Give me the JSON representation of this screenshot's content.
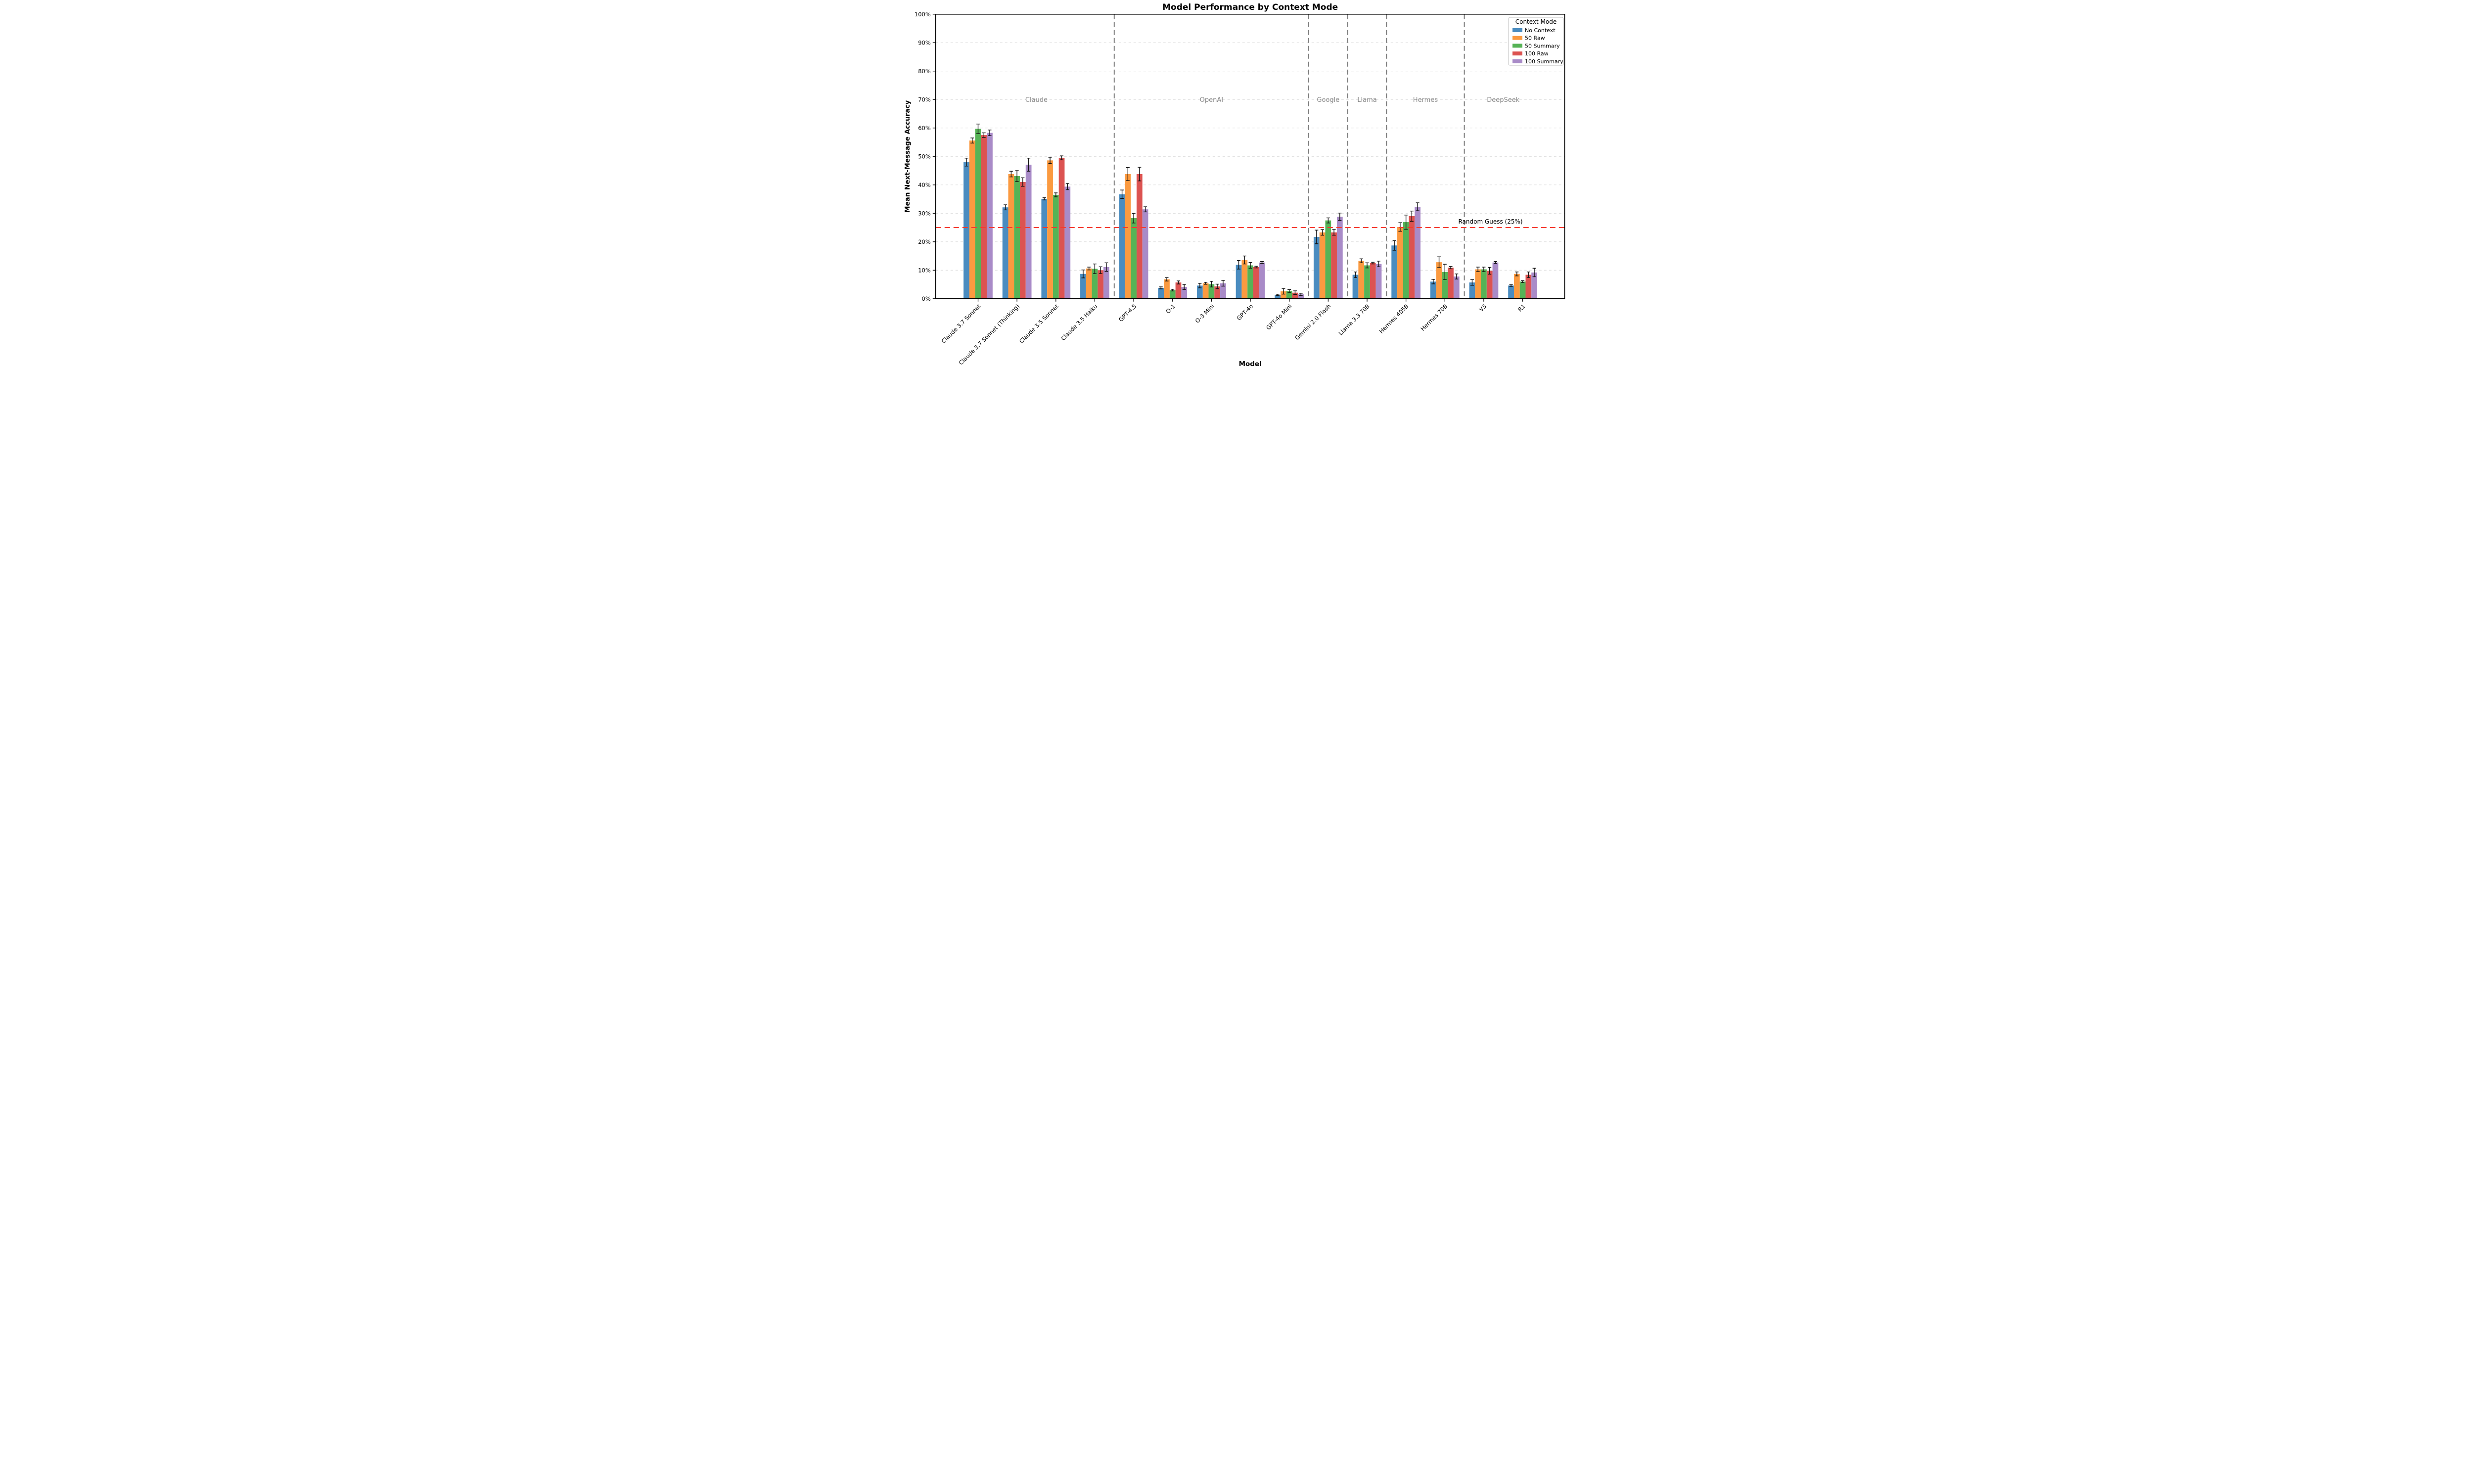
{
  "title": "Model Performance by Context Mode",
  "chart_data": {
    "type": "bar",
    "title": "Model Performance by Context Mode",
    "xlabel": "Model",
    "ylabel": "Mean Next-Message Accuracy",
    "ylim": [
      0,
      100
    ],
    "ytick_labels": [
      "0%",
      "10%",
      "20%",
      "30%",
      "40%",
      "50%",
      "60%",
      "70%",
      "80%",
      "90%",
      "100%"
    ],
    "grid": "horizontal dashed",
    "legend": {
      "title": "Context Mode",
      "position": "upper right",
      "entries": [
        "No Context",
        "50 Raw",
        "50 Summary",
        "100 Raw",
        "100 Summary"
      ]
    },
    "categories": [
      "Claude 3.7 Sonnet",
      "Claude 3.7 Sonnet (Thinking)",
      "Claude 3.5 Sonnet",
      "Claude 3.5 Haiku",
      "GPT-4.5",
      "O-1",
      "O-3 Mini",
      "GPT-4o",
      "GPT-4o Mini",
      "Gemini 2.0 Flash",
      "Llama 3.3 70B",
      "Hermes 405B",
      "Hermes 70B",
      "V3",
      "R1"
    ],
    "series": [
      {
        "name": "No Context",
        "color": "#4a8cc0",
        "values": [
          48.0,
          32.1,
          35.1,
          8.7,
          36.7,
          3.8,
          4.6,
          11.9,
          1.3,
          21.7,
          8.4,
          18.7,
          6.0,
          5.7,
          4.6
        ],
        "errors": [
          1.4,
          0.9,
          0.4,
          1.4,
          1.5,
          0.35,
          0.8,
          1.5,
          0.25,
          2.4,
          1.0,
          1.7,
          0.8,
          1.0,
          0.3
        ]
      },
      {
        "name": "50 Raw",
        "color": "#fb9a40",
        "values": [
          55.6,
          43.8,
          48.6,
          10.6,
          43.8,
          6.8,
          5.4,
          13.6,
          2.6,
          23.3,
          13.3,
          25.2,
          12.8,
          10.3,
          8.7
        ],
        "errors": [
          0.9,
          1.0,
          1.1,
          0.5,
          2.3,
          0.6,
          0.35,
          1.4,
          1.0,
          1.0,
          0.7,
          1.5,
          1.9,
          0.8,
          0.7
        ]
      },
      {
        "name": "50 Summary",
        "color": "#56b356",
        "values": [
          59.7,
          43.1,
          36.5,
          10.5,
          28.3,
          3.0,
          5.1,
          11.7,
          2.7,
          27.5,
          11.7,
          26.9,
          9.4,
          10.3,
          6.0
        ],
        "errors": [
          1.7,
          1.9,
          0.7,
          1.7,
          1.7,
          0.3,
          1.0,
          1.0,
          0.5,
          0.9,
          0.9,
          2.5,
          2.7,
          0.8,
          0.35
        ]
      },
      {
        "name": "100 Raw",
        "color": "#dc5351",
        "values": [
          57.5,
          41.0,
          49.5,
          10.0,
          43.8,
          5.7,
          4.3,
          11.1,
          2.1,
          23.3,
          12.5,
          29.0,
          10.9,
          9.8,
          8.4
        ],
        "errors": [
          0.8,
          1.5,
          0.7,
          1.2,
          2.4,
          0.55,
          0.8,
          0.3,
          0.65,
          1.0,
          0.3,
          1.8,
          0.4,
          1.2,
          1.0
        ]
      },
      {
        "name": "100 Summary",
        "color": "#a98bc8",
        "values": [
          58.3,
          47.1,
          39.4,
          11.1,
          31.4,
          4.1,
          5.4,
          12.7,
          1.5,
          28.8,
          12.2,
          32.3,
          7.8,
          12.7,
          9.2
        ],
        "errors": [
          1.0,
          2.3,
          1.1,
          1.5,
          0.9,
          0.9,
          1.0,
          0.35,
          0.4,
          1.3,
          1.0,
          1.4,
          0.9,
          0.35,
          1.5
        ]
      }
    ],
    "provider_groups": [
      {
        "label": "Claude",
        "from": 0,
        "to": 3
      },
      {
        "label": "OpenAI",
        "from": 4,
        "to": 8
      },
      {
        "label": "Google",
        "from": 9,
        "to": 9
      },
      {
        "label": "Llama",
        "from": 10,
        "to": 10
      },
      {
        "label": "Hermes",
        "from": 11,
        "to": 12
      },
      {
        "label": "DeepSeek",
        "from": 13,
        "to": 14
      }
    ],
    "separators_after": [
      3,
      8,
      9,
      10,
      12
    ],
    "reference_line": {
      "value": 25,
      "label": "Random Guess (25%)",
      "color": "#f43b30"
    },
    "colors": {
      "grid": "#d9d9d9",
      "separator": "#7b7b7b",
      "error_bar": "#111111",
      "provider_label": "#8a8a8a",
      "frame": "#000000"
    }
  }
}
